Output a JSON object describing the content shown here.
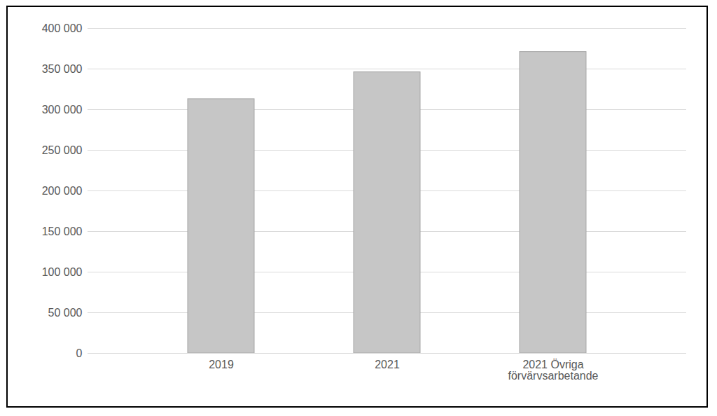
{
  "chart_data": {
    "type": "bar",
    "categories": [
      "2019",
      "2021",
      "2021 Övriga förvärvsarbetande"
    ],
    "values": [
      313000,
      346000,
      371000
    ],
    "color": "#c6c6c6",
    "ylim": [
      0,
      400000
    ],
    "yticks": [
      0,
      {
        "value": 50000,
        "label": "50 000"
      },
      {
        "value": 100000,
        "label": "100 000"
      },
      {
        "value": 150000,
        "label": "150 000"
      },
      {
        "value": 200000,
        "label": "200 000"
      },
      {
        "value": 250000,
        "label": "250 000"
      },
      {
        "value": 300000,
        "label": "300 000"
      },
      {
        "value": 350000,
        "label": "350 000"
      },
      {
        "value": 400000,
        "label": "400 000"
      }
    ],
    "grid": true
  }
}
